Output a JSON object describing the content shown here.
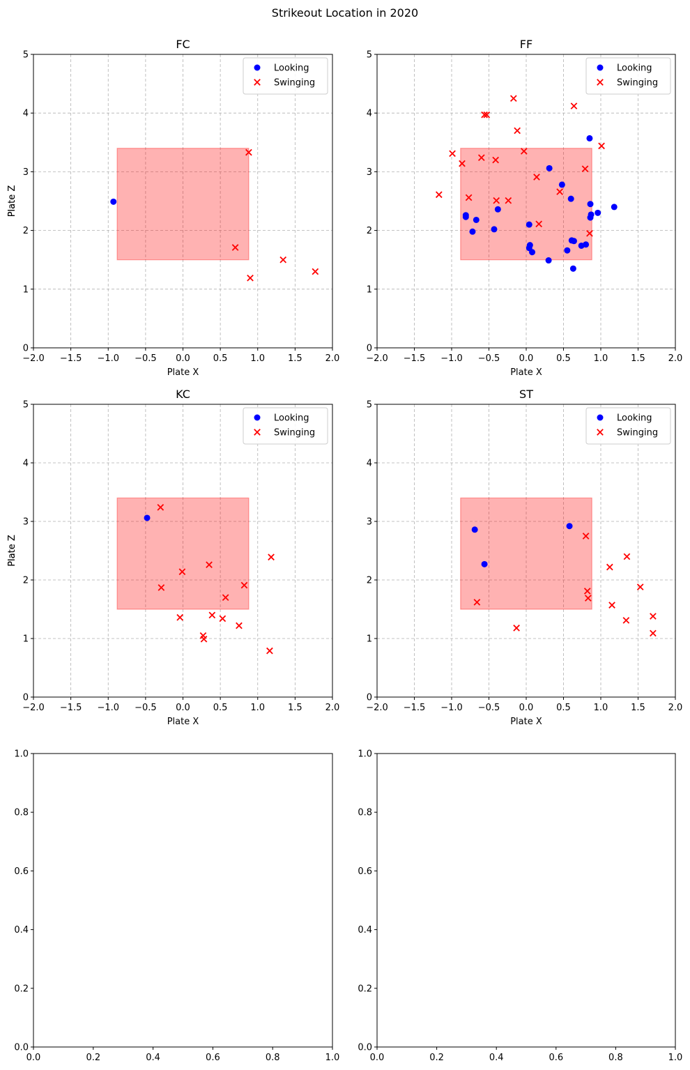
{
  "suptitle": "Strikeout Location in 2020",
  "colors": {
    "looking": "#0000ff",
    "swinging": "#ff0000",
    "zone_fill": "#ff0000",
    "grid": "#b0b0b0"
  },
  "legend": {
    "looking": "Looking",
    "swinging": "Swinging",
    "placement": "upper right"
  },
  "chart_data": [
    {
      "type": "scatter",
      "title": "FC",
      "xlabel": "Plate X",
      "ylabel": "Plate Z",
      "xlim": [
        -2.0,
        2.0
      ],
      "ylim": [
        0,
        5
      ],
      "xticks": [
        "−2.0",
        "−1.5",
        "−1.0",
        "−0.5",
        "0.0",
        "0.5",
        "1.0",
        "1.5",
        "2.0"
      ],
      "yticks": [
        "0",
        "1",
        "2",
        "3",
        "4",
        "5"
      ],
      "grid": true,
      "strike_zone": {
        "x": [
          -0.88,
          0.88
        ],
        "z": [
          1.5,
          3.4
        ]
      },
      "looking": [
        [
          -0.93,
          2.49
        ]
      ],
      "swinging": [
        [
          0.88,
          3.33
        ],
        [
          0.7,
          1.71
        ],
        [
          1.34,
          1.5
        ],
        [
          0.9,
          1.19
        ],
        [
          1.77,
          1.3
        ]
      ]
    },
    {
      "type": "scatter",
      "title": "FF",
      "xlabel": "Plate X",
      "ylabel": "Plate Z",
      "xlim": [
        -2.0,
        2.0
      ],
      "ylim": [
        0,
        5
      ],
      "xticks": [
        "−2.0",
        "−1.5",
        "−1.0",
        "−0.5",
        "0.0",
        "0.5",
        "1.0",
        "1.5",
        "2.0"
      ],
      "yticks": [
        "0",
        "1",
        "2",
        "3",
        "4",
        "5"
      ],
      "grid": true,
      "strike_zone": {
        "x": [
          -0.88,
          0.88
        ],
        "z": [
          1.5,
          3.4
        ]
      },
      "looking": [
        [
          0.85,
          3.57
        ],
        [
          0.31,
          3.06
        ],
        [
          0.48,
          2.78
        ],
        [
          0.6,
          2.54
        ],
        [
          0.86,
          2.45
        ],
        [
          1.18,
          2.4
        ],
        [
          -0.81,
          2.26
        ],
        [
          -0.81,
          2.23
        ],
        [
          -0.67,
          2.18
        ],
        [
          -0.38,
          2.36
        ],
        [
          0.96,
          2.3
        ],
        [
          0.87,
          2.27
        ],
        [
          0.86,
          2.22
        ],
        [
          -0.72,
          1.98
        ],
        [
          -0.43,
          2.02
        ],
        [
          0.04,
          2.1
        ],
        [
          0.61,
          1.83
        ],
        [
          0.64,
          1.82
        ],
        [
          0.05,
          1.75
        ],
        [
          0.04,
          1.7
        ],
        [
          0.08,
          1.63
        ],
        [
          0.55,
          1.66
        ],
        [
          0.74,
          1.74
        ],
        [
          0.8,
          1.76
        ],
        [
          0.3,
          1.49
        ],
        [
          0.63,
          1.35
        ]
      ],
      "swinging": [
        [
          -0.17,
          4.25
        ],
        [
          0.64,
          4.12
        ],
        [
          -0.56,
          3.97
        ],
        [
          -0.53,
          3.97
        ],
        [
          -0.12,
          3.7
        ],
        [
          1.01,
          3.44
        ],
        [
          -0.99,
          3.31
        ],
        [
          -0.03,
          3.35
        ],
        [
          -0.6,
          3.24
        ],
        [
          -0.41,
          3.2
        ],
        [
          -0.86,
          3.14
        ],
        [
          0.79,
          3.05
        ],
        [
          0.14,
          2.91
        ],
        [
          0.45,
          2.66
        ],
        [
          -1.17,
          2.61
        ],
        [
          -0.77,
          2.56
        ],
        [
          -0.4,
          2.51
        ],
        [
          -0.24,
          2.51
        ],
        [
          0.17,
          2.11
        ],
        [
          0.85,
          1.95
        ]
      ]
    },
    {
      "type": "scatter",
      "title": "KC",
      "xlabel": "Plate X",
      "ylabel": "Plate Z",
      "xlim": [
        -2.0,
        2.0
      ],
      "ylim": [
        0,
        5
      ],
      "xticks": [
        "−2.0",
        "−1.5",
        "−1.0",
        "−0.5",
        "0.0",
        "0.5",
        "1.0",
        "1.5",
        "2.0"
      ],
      "yticks": [
        "0",
        "1",
        "2",
        "3",
        "4",
        "5"
      ],
      "grid": true,
      "strike_zone": {
        "x": [
          -0.88,
          0.88
        ],
        "z": [
          1.5,
          3.4
        ]
      },
      "looking": [
        [
          -0.48,
          3.06
        ]
      ],
      "swinging": [
        [
          -0.3,
          3.24
        ],
        [
          1.18,
          2.39
        ],
        [
          0.35,
          2.26
        ],
        [
          -0.01,
          2.14
        ],
        [
          0.82,
          1.91
        ],
        [
          -0.29,
          1.87
        ],
        [
          0.57,
          1.7
        ],
        [
          -0.04,
          1.36
        ],
        [
          0.39,
          1.4
        ],
        [
          0.53,
          1.34
        ],
        [
          0.75,
          1.22
        ],
        [
          0.27,
          1.05
        ],
        [
          0.28,
          0.99
        ],
        [
          1.16,
          0.79
        ]
      ]
    },
    {
      "type": "scatter",
      "title": "ST",
      "xlabel": "Plate X",
      "ylabel": "Plate Z",
      "xlim": [
        -2.0,
        2.0
      ],
      "ylim": [
        0,
        5
      ],
      "xticks": [
        "−2.0",
        "−1.5",
        "−1.0",
        "−0.5",
        "0.0",
        "0.5",
        "1.0",
        "1.5",
        "2.0"
      ],
      "yticks": [
        "0",
        "1",
        "2",
        "3",
        "4",
        "5"
      ],
      "grid": true,
      "strike_zone": {
        "x": [
          -0.88,
          0.88
        ],
        "z": [
          1.5,
          3.4
        ]
      },
      "looking": [
        [
          -0.69,
          2.86
        ],
        [
          -0.56,
          2.27
        ],
        [
          0.58,
          2.92
        ]
      ],
      "swinging": [
        [
          0.8,
          2.75
        ],
        [
          1.35,
          2.4
        ],
        [
          1.12,
          2.22
        ],
        [
          1.53,
          1.88
        ],
        [
          0.82,
          1.81
        ],
        [
          0.83,
          1.69
        ],
        [
          -0.66,
          1.62
        ],
        [
          1.15,
          1.57
        ],
        [
          1.7,
          1.38
        ],
        [
          1.34,
          1.31
        ],
        [
          -0.13,
          1.18
        ],
        [
          1.7,
          1.09
        ]
      ]
    },
    {
      "type": "scatter",
      "title": "",
      "xlim": [
        0,
        1
      ],
      "ylim": [
        0,
        1
      ],
      "xticks": [
        "0.0",
        "0.2",
        "0.4",
        "0.6",
        "0.8",
        "1.0"
      ],
      "yticks": [
        "0.0",
        "0.2",
        "0.4",
        "0.6",
        "0.8",
        "1.0"
      ],
      "grid": false,
      "empty": true
    },
    {
      "type": "scatter",
      "title": "",
      "xlim": [
        0,
        1
      ],
      "ylim": [
        0,
        1
      ],
      "xticks": [
        "0.0",
        "0.2",
        "0.4",
        "0.6",
        "0.8",
        "1.0"
      ],
      "yticks": [
        "0.0",
        "0.2",
        "0.4",
        "0.6",
        "0.8",
        "1.0"
      ],
      "grid": false,
      "empty": true
    }
  ]
}
